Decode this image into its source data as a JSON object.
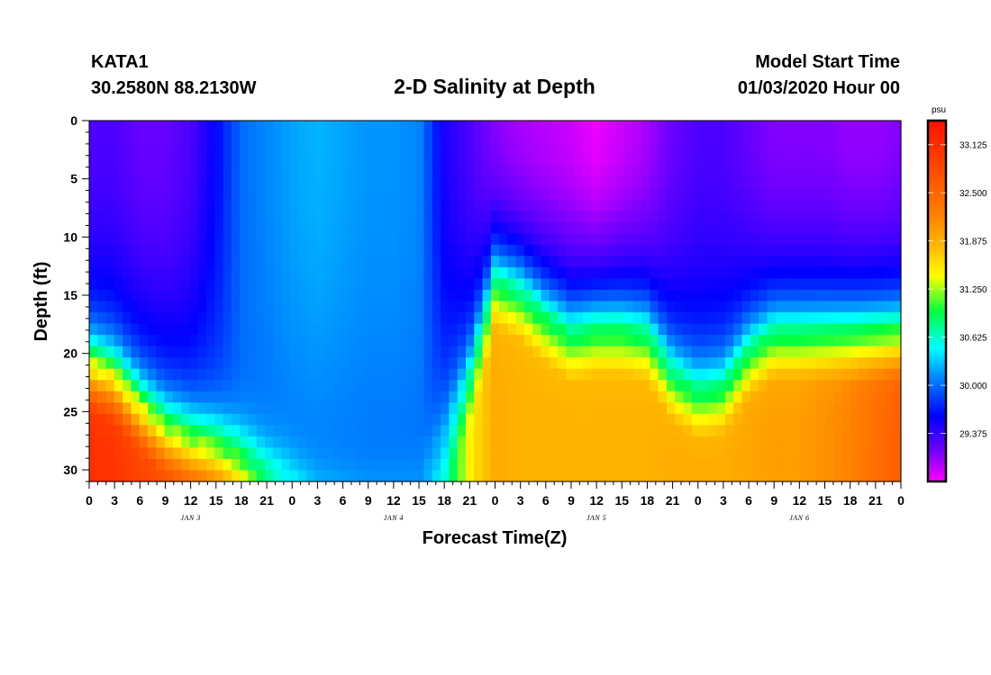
{
  "header": {
    "station": "KATA1",
    "location": "30.2580N 88.2130W",
    "title": "2-D Salinity at Depth",
    "start_label": "Model Start Time",
    "start_value": "01/03/2020 Hour 00"
  },
  "chart_data": {
    "type": "heatmap",
    "title": "2-D Salinity at Depth",
    "xlabel": "Forecast Time(Z)",
    "ylabel": "Depth (ft)",
    "x_range_hours": [
      0,
      96
    ],
    "y_range_ft": [
      0,
      31
    ],
    "y_ticks": [
      0,
      5,
      10,
      15,
      20,
      25,
      30
    ],
    "x_ticks": [
      {
        "hour": 0,
        "label": "0"
      },
      {
        "hour": 3,
        "label": "3"
      },
      {
        "hour": 6,
        "label": "6"
      },
      {
        "hour": 9,
        "label": "9"
      },
      {
        "hour": 12,
        "label": "12"
      },
      {
        "hour": 15,
        "label": "15"
      },
      {
        "hour": 18,
        "label": "18"
      },
      {
        "hour": 21,
        "label": "21"
      },
      {
        "hour": 24,
        "label": "0"
      },
      {
        "hour": 27,
        "label": "3"
      },
      {
        "hour": 30,
        "label": "6"
      },
      {
        "hour": 33,
        "label": "9"
      },
      {
        "hour": 36,
        "label": "12"
      },
      {
        "hour": 39,
        "label": "15"
      },
      {
        "hour": 42,
        "label": "18"
      },
      {
        "hour": 45,
        "label": "21"
      },
      {
        "hour": 48,
        "label": "0"
      },
      {
        "hour": 51,
        "label": "3"
      },
      {
        "hour": 54,
        "label": "6"
      },
      {
        "hour": 57,
        "label": "9"
      },
      {
        "hour": 60,
        "label": "12"
      },
      {
        "hour": 63,
        "label": "15"
      },
      {
        "hour": 66,
        "label": "18"
      },
      {
        "hour": 69,
        "label": "21"
      },
      {
        "hour": 72,
        "label": "0"
      },
      {
        "hour": 75,
        "label": "3"
      },
      {
        "hour": 78,
        "label": "6"
      },
      {
        "hour": 81,
        "label": "9"
      },
      {
        "hour": 84,
        "label": "12"
      },
      {
        "hour": 87,
        "label": "15"
      },
      {
        "hour": 90,
        "label": "18"
      },
      {
        "hour": 93,
        "label": "21"
      },
      {
        "hour": 96,
        "label": "0"
      }
    ],
    "day_labels": [
      {
        "hour": 12,
        "label": "JAN 3"
      },
      {
        "hour": 36,
        "label": "JAN 4"
      },
      {
        "hour": 60,
        "label": "JAN 5"
      },
      {
        "hour": 84,
        "label": "JAN 6"
      }
    ],
    "colorbar": {
      "unit": "psu",
      "min": 28.75,
      "max": 33.4375,
      "ticks": [
        "33.125",
        "32.500",
        "31.875",
        "31.250",
        "30.625",
        "30.000",
        "29.375"
      ]
    },
    "columns": [
      {
        "hour": 0,
        "surface": 29.3,
        "halocline_ft": 21.0,
        "bottom": 33.1
      },
      {
        "hour": 3,
        "surface": 29.3,
        "halocline_ft": 22.0,
        "bottom": 33.05
      },
      {
        "hour": 6,
        "surface": 29.2,
        "halocline_ft": 24.5,
        "bottom": 32.9
      },
      {
        "hour": 9,
        "surface": 29.2,
        "halocline_ft": 26.5,
        "bottom": 32.8
      },
      {
        "hour": 12,
        "surface": 29.3,
        "halocline_ft": 27.5,
        "bottom": 32.7
      },
      {
        "hour": 15,
        "surface": 29.6,
        "halocline_ft": 28.0,
        "bottom": 32.5
      },
      {
        "hour": 18,
        "surface": 30.0,
        "halocline_ft": 29.0,
        "bottom": 32.2
      },
      {
        "hour": 21,
        "surface": 30.1,
        "halocline_ft": 30.0,
        "bottom": 31.5
      },
      {
        "hour": 24,
        "surface": 30.2,
        "halocline_ft": 30.5,
        "bottom": 30.9
      },
      {
        "hour": 27,
        "surface": 30.25,
        "halocline_ft": 31.0,
        "bottom": 30.5
      },
      {
        "hour": 30,
        "surface": 30.2,
        "halocline_ft": 31.0,
        "bottom": 30.4
      },
      {
        "hour": 33,
        "surface": 30.15,
        "halocline_ft": 31.0,
        "bottom": 30.3
      },
      {
        "hour": 36,
        "surface": 30.15,
        "halocline_ft": 31.0,
        "bottom": 30.3
      },
      {
        "hour": 39,
        "surface": 30.1,
        "halocline_ft": 31.0,
        "bottom": 30.3
      },
      {
        "hour": 42,
        "surface": 29.5,
        "halocline_ft": 27.0,
        "bottom": 30.6
      },
      {
        "hour": 45,
        "surface": 29.3,
        "halocline_ft": 22.0,
        "bottom": 31.5
      },
      {
        "hour": 48,
        "surface": 29.1,
        "halocline_ft": 14.0,
        "bottom": 31.9
      },
      {
        "hour": 51,
        "surface": 29.0,
        "halocline_ft": 15.0,
        "bottom": 31.85
      },
      {
        "hour": 54,
        "surface": 28.95,
        "halocline_ft": 17.0,
        "bottom": 31.85
      },
      {
        "hour": 57,
        "surface": 28.9,
        "halocline_ft": 18.5,
        "bottom": 31.85
      },
      {
        "hour": 60,
        "surface": 28.8,
        "halocline_ft": 18.0,
        "bottom": 31.85
      },
      {
        "hour": 63,
        "surface": 28.9,
        "halocline_ft": 18.0,
        "bottom": 31.85
      },
      {
        "hour": 66,
        "surface": 29.0,
        "halocline_ft": 18.5,
        "bottom": 31.85
      },
      {
        "hour": 69,
        "surface": 29.2,
        "halocline_ft": 22.0,
        "bottom": 31.9
      },
      {
        "hour": 72,
        "surface": 29.3,
        "halocline_ft": 23.5,
        "bottom": 31.9
      },
      {
        "hour": 75,
        "surface": 29.3,
        "halocline_ft": 23.0,
        "bottom": 31.9
      },
      {
        "hour": 78,
        "surface": 29.2,
        "halocline_ft": 20.0,
        "bottom": 31.95
      },
      {
        "hour": 81,
        "surface": 29.1,
        "halocline_ft": 18.5,
        "bottom": 32.0
      },
      {
        "hour": 84,
        "surface": 29.1,
        "halocline_ft": 18.5,
        "bottom": 32.0
      },
      {
        "hour": 87,
        "surface": 29.1,
        "halocline_ft": 18.5,
        "bottom": 32.1
      },
      {
        "hour": 90,
        "surface": 29.05,
        "halocline_ft": 18.5,
        "bottom": 32.2
      },
      {
        "hour": 93,
        "surface": 29.05,
        "halocline_ft": 18.5,
        "bottom": 32.4
      },
      {
        "hour": 96,
        "surface": 29.1,
        "halocline_ft": 18.5,
        "bottom": 32.6
      }
    ]
  }
}
